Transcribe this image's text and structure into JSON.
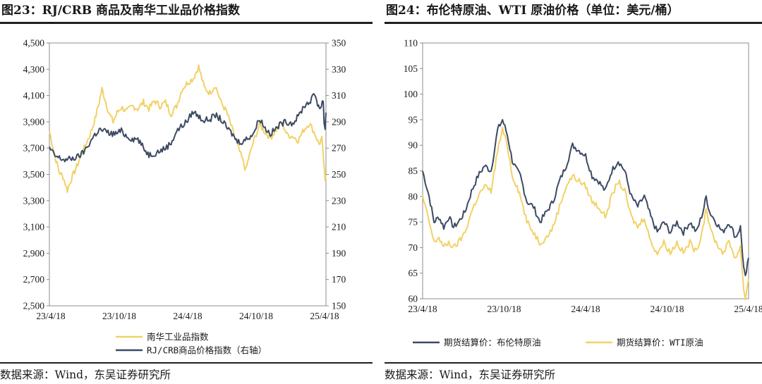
{
  "chart_data": [
    {
      "type": "line",
      "title": "图23：RJ/CRB 商品及南华工业品价格指数",
      "source": "数据来源：Wind，东吴证券研究所",
      "x_ticks": [
        "23/4/18",
        "23/10/18",
        "24/4/18",
        "24/10/18",
        "25/4/18"
      ],
      "y_left": {
        "ylim": [
          2500,
          4500
        ],
        "ticks": [
          "4,500",
          "4,300",
          "4,100",
          "3,900",
          "3,700",
          "3,500",
          "3,300",
          "3,100",
          "2,900",
          "2,700",
          "2,500"
        ]
      },
      "y_right": {
        "ylim": [
          150,
          350
        ],
        "ticks": [
          "350",
          "330",
          "310",
          "290",
          "270",
          "250",
          "230",
          "210",
          "190",
          "170",
          "150"
        ]
      },
      "legend_position": "bottom",
      "series": [
        {
          "name": "南华工业品指数",
          "axis": "left",
          "color": "#f2d166",
          "points": [
            [
              0,
              3830
            ],
            [
              0.02,
              3640
            ],
            [
              0.035,
              3520
            ],
            [
              0.05,
              3480
            ],
            [
              0.065,
              3380
            ],
            [
              0.08,
              3470
            ],
            [
              0.095,
              3540
            ],
            [
              0.11,
              3620
            ],
            [
              0.13,
              3720
            ],
            [
              0.15,
              3820
            ],
            [
              0.165,
              3920
            ],
            [
              0.18,
              4050
            ],
            [
              0.19,
              4150
            ],
            [
              0.2,
              4080
            ],
            [
              0.215,
              3970
            ],
            [
              0.23,
              3900
            ],
            [
              0.245,
              3970
            ],
            [
              0.26,
              4010
            ],
            [
              0.28,
              3980
            ],
            [
              0.3,
              4020
            ],
            [
              0.32,
              4000
            ],
            [
              0.34,
              4050
            ],
            [
              0.36,
              4000
            ],
            [
              0.38,
              4060
            ],
            [
              0.4,
              4020
            ],
            [
              0.42,
              4050
            ],
            [
              0.44,
              3960
            ],
            [
              0.46,
              4020
            ],
            [
              0.48,
              4150
            ],
            [
              0.5,
              4200
            ],
            [
              0.52,
              4230
            ],
            [
              0.54,
              4320
            ],
            [
              0.56,
              4160
            ],
            [
              0.58,
              4120
            ],
            [
              0.6,
              4180
            ],
            [
              0.62,
              4050
            ],
            [
              0.64,
              3980
            ],
            [
              0.66,
              3850
            ],
            [
              0.68,
              3720
            ],
            [
              0.7,
              3600
            ],
            [
              0.71,
              3530
            ],
            [
              0.72,
              3620
            ],
            [
              0.74,
              3760
            ],
            [
              0.76,
              3880
            ],
            [
              0.78,
              3820
            ],
            [
              0.8,
              3780
            ],
            [
              0.82,
              3840
            ],
            [
              0.84,
              3900
            ],
            [
              0.86,
              3800
            ],
            [
              0.88,
              3790
            ],
            [
              0.9,
              3760
            ],
            [
              0.92,
              3840
            ],
            [
              0.94,
              3890
            ],
            [
              0.96,
              3810
            ],
            [
              0.975,
              3730
            ],
            [
              0.985,
              3770
            ],
            [
              0.992,
              3590
            ],
            [
              0.997,
              3440
            ],
            [
              1.0,
              3500
            ]
          ]
        },
        {
          "name": "RJ/CRB商品价格指数（右轴）",
          "axis": "right",
          "color": "#3c4a63",
          "points": [
            [
              0,
              270
            ],
            [
              0.02,
              264
            ],
            [
              0.04,
              262
            ],
            [
              0.06,
              261
            ],
            [
              0.08,
              262
            ],
            [
              0.1,
              263
            ],
            [
              0.12,
              266
            ],
            [
              0.14,
              272
            ],
            [
              0.16,
              279
            ],
            [
              0.18,
              284
            ],
            [
              0.2,
              283
            ],
            [
              0.22,
              281
            ],
            [
              0.24,
              281
            ],
            [
              0.26,
              283
            ],
            [
              0.28,
              279
            ],
            [
              0.3,
              277
            ],
            [
              0.32,
              277
            ],
            [
              0.34,
              270
            ],
            [
              0.36,
              265
            ],
            [
              0.38,
              266
            ],
            [
              0.4,
              268
            ],
            [
              0.42,
              270
            ],
            [
              0.44,
              274
            ],
            [
              0.46,
              283
            ],
            [
              0.48,
              287
            ],
            [
              0.5,
              291
            ],
            [
              0.52,
              298
            ],
            [
              0.54,
              294
            ],
            [
              0.56,
              291
            ],
            [
              0.58,
              292
            ],
            [
              0.6,
              295
            ],
            [
              0.62,
              292
            ],
            [
              0.64,
              286
            ],
            [
              0.66,
              281
            ],
            [
              0.68,
              275
            ],
            [
              0.7,
              275
            ],
            [
              0.72,
              278
            ],
            [
              0.74,
              282
            ],
            [
              0.76,
              293
            ],
            [
              0.78,
              285
            ],
            [
              0.8,
              281
            ],
            [
              0.82,
              285
            ],
            [
              0.84,
              289
            ],
            [
              0.86,
              290
            ],
            [
              0.88,
              289
            ],
            [
              0.9,
              294
            ],
            [
              0.92,
              302
            ],
            [
              0.94,
              305
            ],
            [
              0.96,
              311
            ],
            [
              0.97,
              304
            ],
            [
              0.98,
              300
            ],
            [
              0.99,
              307
            ],
            [
              0.993,
              290
            ],
            [
              0.997,
              285
            ],
            [
              1.0,
              297
            ]
          ]
        }
      ]
    },
    {
      "type": "line",
      "title": "图24：布伦特原油、WTI 原油价格（单位：美元/桶）",
      "source": "数据来源：Wind，东吴证券研究所",
      "x_ticks": [
        "23/4/18",
        "23/10/18",
        "24/4/18",
        "24/10/18",
        "25/4/18"
      ],
      "y_left": {
        "ylim": [
          60,
          110
        ],
        "ticks": [
          "110",
          "105",
          "100",
          "95",
          "90",
          "85",
          "80",
          "75",
          "70",
          "65",
          "60"
        ]
      },
      "legend_position": "bottom",
      "series": [
        {
          "name": "期货结算价：布伦特原油",
          "color": "#3c4a63",
          "points": [
            [
              0,
              85
            ],
            [
              0.02,
              80
            ],
            [
              0.035,
              75
            ],
            [
              0.05,
              76
            ],
            [
              0.065,
              74
            ],
            [
              0.08,
              76
            ],
            [
              0.095,
              74
            ],
            [
              0.11,
              75
            ],
            [
              0.13,
              77
            ],
            [
              0.15,
              81
            ],
            [
              0.17,
              84
            ],
            [
              0.19,
              86
            ],
            [
              0.21,
              85
            ],
            [
              0.23,
              93
            ],
            [
              0.245,
              95
            ],
            [
              0.26,
              92
            ],
            [
              0.275,
              87
            ],
            [
              0.29,
              85
            ],
            [
              0.3,
              84
            ],
            [
              0.32,
              79
            ],
            [
              0.34,
              78
            ],
            [
              0.36,
              75
            ],
            [
              0.38,
              77
            ],
            [
              0.4,
              79
            ],
            [
              0.42,
              83
            ],
            [
              0.44,
              86
            ],
            [
              0.46,
              90
            ],
            [
              0.48,
              89
            ],
            [
              0.5,
              88
            ],
            [
              0.52,
              84
            ],
            [
              0.54,
              83
            ],
            [
              0.56,
              81
            ],
            [
              0.58,
              85
            ],
            [
              0.6,
              87
            ],
            [
              0.62,
              85
            ],
            [
              0.64,
              80
            ],
            [
              0.66,
              78
            ],
            [
              0.68,
              80
            ],
            [
              0.7,
              76
            ],
            [
              0.72,
              73
            ],
            [
              0.74,
              75
            ],
            [
              0.76,
              73
            ],
            [
              0.78,
              75
            ],
            [
              0.8,
              73
            ],
            [
              0.82,
              75
            ],
            [
              0.84,
              73
            ],
            [
              0.86,
              77
            ],
            [
              0.87,
              80
            ],
            [
              0.88,
              77
            ],
            [
              0.9,
              75
            ],
            [
              0.92,
              73
            ],
            [
              0.94,
              75
            ],
            [
              0.96,
              72
            ],
            [
              0.975,
              74
            ],
            [
              0.985,
              66
            ],
            [
              0.99,
              64
            ],
            [
              1.0,
              68
            ]
          ]
        },
        {
          "name": "期货结算价：WTI原油",
          "color": "#f2d166",
          "points": [
            [
              0,
              80
            ],
            [
              0.02,
              75
            ],
            [
              0.035,
              71
            ],
            [
              0.05,
              72
            ],
            [
              0.065,
              70
            ],
            [
              0.08,
              71
            ],
            [
              0.095,
              70
            ],
            [
              0.11,
              71
            ],
            [
              0.13,
              73
            ],
            [
              0.15,
              77
            ],
            [
              0.17,
              80
            ],
            [
              0.19,
              82
            ],
            [
              0.21,
              81
            ],
            [
              0.23,
              89
            ],
            [
              0.245,
              93
            ],
            [
              0.26,
              90
            ],
            [
              0.275,
              84
            ],
            [
              0.29,
              82
            ],
            [
              0.3,
              80
            ],
            [
              0.32,
              75
            ],
            [
              0.34,
              73
            ],
            [
              0.36,
              71
            ],
            [
              0.38,
              72
            ],
            [
              0.4,
              74
            ],
            [
              0.42,
              78
            ],
            [
              0.44,
              82
            ],
            [
              0.46,
              84
            ],
            [
              0.48,
              83
            ],
            [
              0.5,
              82
            ],
            [
              0.52,
              79
            ],
            [
              0.54,
              78
            ],
            [
              0.56,
              76
            ],
            [
              0.58,
              80
            ],
            [
              0.6,
              83
            ],
            [
              0.62,
              81
            ],
            [
              0.64,
              76
            ],
            [
              0.66,
              74
            ],
            [
              0.68,
              76
            ],
            [
              0.7,
              71
            ],
            [
              0.72,
              69
            ],
            [
              0.74,
              71
            ],
            [
              0.76,
              69
            ],
            [
              0.78,
              71
            ],
            [
              0.8,
              69
            ],
            [
              0.82,
              71
            ],
            [
              0.84,
              69
            ],
            [
              0.86,
              74
            ],
            [
              0.87,
              78
            ],
            [
              0.88,
              74
            ],
            [
              0.9,
              71
            ],
            [
              0.92,
              69
            ],
            [
              0.94,
              71
            ],
            [
              0.96,
              68
            ],
            [
              0.975,
              70
            ],
            [
              0.985,
              62
            ],
            [
              0.99,
              60
            ],
            [
              1.0,
              64
            ]
          ]
        }
      ]
    }
  ]
}
